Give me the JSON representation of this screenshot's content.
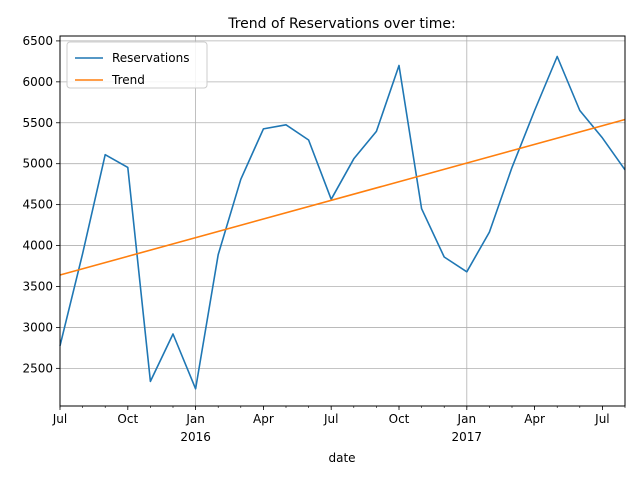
{
  "chart_data": {
    "type": "line",
    "title": "Trend of Reservations over time:",
    "xlabel": "date",
    "ylabel": "",
    "ylim": [
      2040,
      6560
    ],
    "xlim": [
      "2015-07",
      "2017-08"
    ],
    "yticks": [
      2500,
      3000,
      3500,
      4000,
      4500,
      5000,
      5500,
      6000,
      6500
    ],
    "xticks": [
      {
        "x": "2015-07",
        "label": "Jul",
        "sublabel": "",
        "major": false
      },
      {
        "x": "2015-10",
        "label": "Oct",
        "sublabel": "",
        "major": false
      },
      {
        "x": "2016-01",
        "label": "Jan",
        "sublabel": "2016",
        "major": true
      },
      {
        "x": "2016-04",
        "label": "Apr",
        "sublabel": "",
        "major": false
      },
      {
        "x": "2016-07",
        "label": "Jul",
        "sublabel": "",
        "major": false
      },
      {
        "x": "2016-10",
        "label": "Oct",
        "sublabel": "",
        "major": false
      },
      {
        "x": "2017-01",
        "label": "Jan",
        "sublabel": "2017",
        "major": true
      },
      {
        "x": "2017-04",
        "label": "Apr",
        "sublabel": "",
        "major": false
      },
      {
        "x": "2017-07",
        "label": "Jul",
        "sublabel": "",
        "major": false
      }
    ],
    "grid": true,
    "legend_position": "top-left",
    "series": [
      {
        "name": "Reservations",
        "color": "#1f77b4",
        "x": [
          "2015-07",
          "2015-08",
          "2015-09",
          "2015-10",
          "2015-11",
          "2015-12",
          "2016-01",
          "2016-02",
          "2016-03",
          "2016-04",
          "2016-05",
          "2016-06",
          "2016-07",
          "2016-08",
          "2016-09",
          "2016-10",
          "2016-11",
          "2016-12",
          "2017-01",
          "2017-02",
          "2017-03",
          "2017-04",
          "2017-05",
          "2017-06",
          "2017-07",
          "2017-08"
        ],
        "values": [
          2775,
          3900,
          5110,
          4955,
          2340,
          2920,
          2250,
          3890,
          4810,
          5425,
          5475,
          5290,
          4565,
          5060,
          5395,
          6200,
          4450,
          3860,
          3680,
          4165,
          4955,
          5650,
          6310,
          5650,
          5315,
          4925
        ]
      },
      {
        "name": "Trend",
        "color": "#ff7f0e",
        "x": [
          "2015-07",
          "2017-08"
        ],
        "values": [
          3640,
          5540
        ]
      }
    ]
  }
}
